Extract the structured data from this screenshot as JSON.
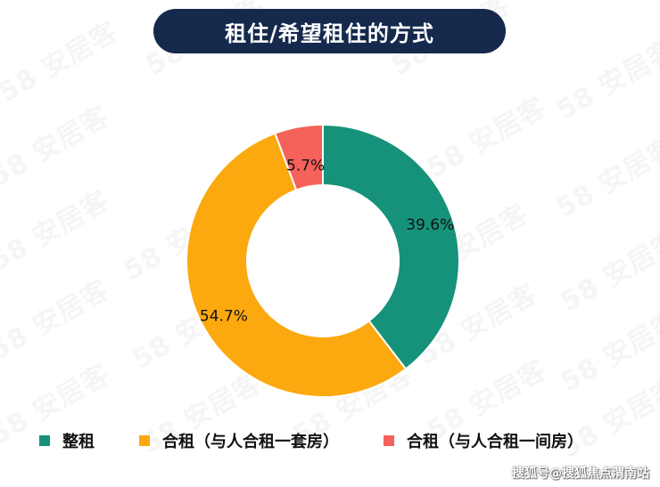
{
  "watermark": "58 安居客",
  "credit": "搜狐号@搜狐焦点渭南站",
  "chart_data": {
    "type": "pie",
    "donut": true,
    "title": "租住/希望租住的方式",
    "slices": [
      {
        "name": "整租",
        "value": 39.6,
        "label": "39.6%",
        "color": "#16927a"
      },
      {
        "name": "合租（与人合租一套房）",
        "value": 54.7,
        "label": "54.7%",
        "color": "#fba90f"
      },
      {
        "name": "合租（与人合租一间房）",
        "value": 5.7,
        "label": "5.7%",
        "color": "#f4625a"
      }
    ],
    "legend_position": "bottom",
    "start": "top, clockwise"
  }
}
